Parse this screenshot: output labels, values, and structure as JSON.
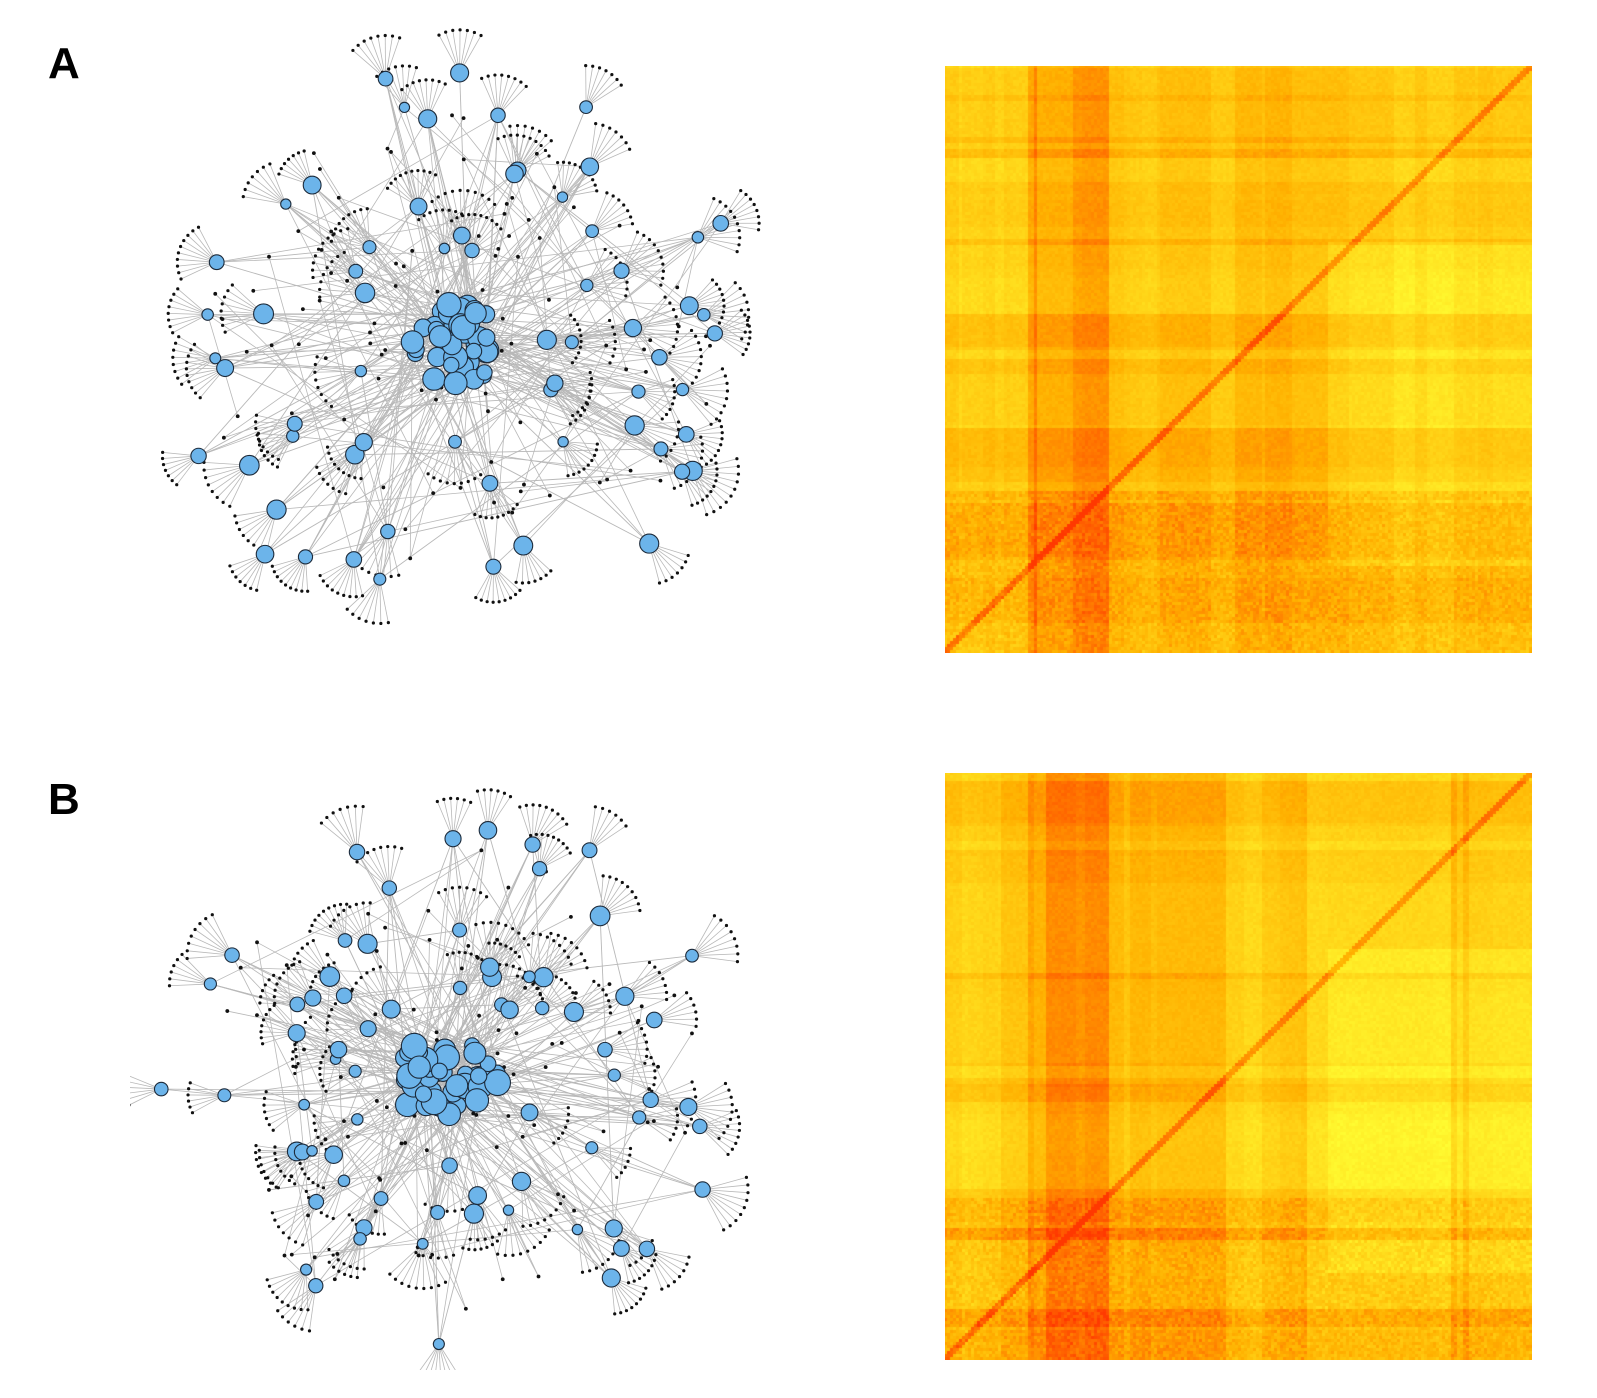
{
  "panels": [
    {
      "label": "A",
      "network": {
        "hub_count": 64,
        "leaves_per_hub": 9,
        "core_count": 40,
        "seed": 11
      },
      "heatmap": {
        "seed": 7,
        "diagonal_from": "bottom-left",
        "hot_column_band": "left"
      }
    },
    {
      "label": "B",
      "network": {
        "hub_count": 72,
        "leaves_per_hub": 8,
        "core_count": 44,
        "seed": 23
      },
      "heatmap": {
        "seed": 19,
        "diagonal_from": "bottom-left",
        "hot_column_band": "left"
      }
    }
  ],
  "colors": {
    "node_fill": "#6cb4ea",
    "node_stroke": "#1c2a3a",
    "leaf": "#111111",
    "edge": "#b8b8b8",
    "heat_low": "#ffff33",
    "heat_mid": "#ffb000",
    "heat_high": "#ff3800"
  }
}
